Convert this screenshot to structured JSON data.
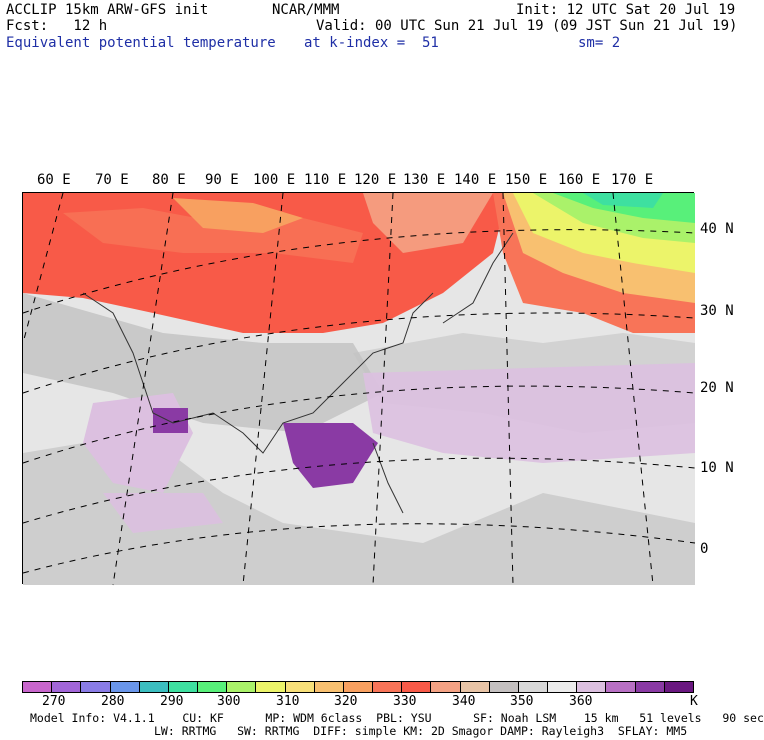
{
  "header": {
    "model": "ACCLIP 15km ARW-GFS init",
    "org": "NCAR/MMM",
    "init": "Init: 12 UTC Sat 20 Jul 19",
    "fcst": "Fcst:   12 h",
    "valid": "Valid: 00 UTC Sun 21 Jul 19 (09 JST Sun 21 Jul 19)",
    "field": "Equivalent potential temperature",
    "level": "at k-index =  51",
    "smooth": "sm= 2"
  },
  "lon_labels": [
    "60 E",
    "70 E",
    "80 E",
    "90 E",
    "100 E",
    "110 E",
    "120 E",
    "130 E",
    "140 E",
    "150 E",
    "160 E",
    "170 E"
  ],
  "lat_labels": [
    "40 N",
    "30 N",
    "20 N",
    "10 N",
    "0"
  ],
  "colorbar": {
    "colors": [
      "#c866cc",
      "#a266d8",
      "#8a7ce6",
      "#6a96ea",
      "#3cbec0",
      "#3ee0a0",
      "#58f07a",
      "#aaf26a",
      "#ecf46a",
      "#f8e07a",
      "#f8c070",
      "#f8a060",
      "#f87458",
      "#f85a48",
      "#f4a284",
      "#e8c4a6",
      "#c4c0c0",
      "#d8d8d8",
      "#ebebeb",
      "#dcc0e0",
      "#b870c4",
      "#8a3aa4",
      "#6a1880"
    ],
    "labels": [
      "270",
      "280",
      "290",
      "300",
      "310",
      "320",
      "330",
      "340",
      "350",
      "360"
    ],
    "unit": "K"
  },
  "model_info": {
    "line1": "Model Info: V4.1.1    CU: KF      MP: WDM 6class  PBL: YSU      SF: Noah LSM    15 km   51 levels   90 sec",
    "line2": "LW: RRTMG   SW: RRTMG  DIFF: simple KM: 2D Smagor DAMP: Rayleigh3  SFLAY: MM5"
  }
}
